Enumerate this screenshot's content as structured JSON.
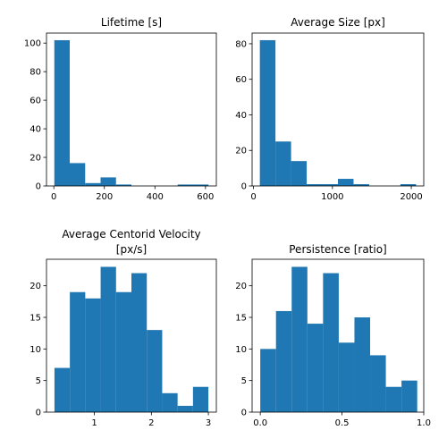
{
  "figure": {
    "background": "#ffffff",
    "bar_color": "#1f77b4"
  },
  "chart_data": [
    {
      "type": "bar",
      "title": "Lifetime [s]",
      "title_lines": [
        "Lifetime [s]"
      ],
      "xlabel": "",
      "ylabel": "",
      "bin_edges": [
        2,
        63,
        124,
        185,
        246,
        307,
        368,
        429,
        490,
        551,
        612
      ],
      "values": [
        102,
        16,
        2,
        6,
        1,
        0,
        0,
        0,
        1,
        1
      ],
      "xlim": [
        -29,
        643
      ],
      "ylim": [
        0,
        107
      ],
      "xticks": [
        0,
        200,
        400,
        600
      ],
      "xtick_labels": [
        "0",
        "200",
        "400",
        "600"
      ],
      "yticks": [
        0,
        20,
        40,
        60,
        80,
        100
      ],
      "ytick_labels": [
        "0",
        "20",
        "40",
        "60",
        "80",
        "100"
      ],
      "grid": false
    },
    {
      "type": "bar",
      "title": "Average Size [px]",
      "title_lines": [
        "Average Size [px]"
      ],
      "xlabel": "",
      "ylabel": "",
      "bin_edges": [
        80,
        278,
        476,
        674,
        872,
        1070,
        1268,
        1466,
        1664,
        1862,
        2060
      ],
      "values": [
        82,
        25,
        14,
        1,
        1,
        4,
        1,
        0,
        0,
        1
      ],
      "xlim": [
        -18,
        2158
      ],
      "ylim": [
        0,
        86
      ],
      "xticks": [
        0,
        1000,
        2000
      ],
      "xtick_labels": [
        "0",
        "1000",
        "2000"
      ],
      "yticks": [
        0,
        20,
        40,
        60,
        80
      ],
      "ytick_labels": [
        "0",
        "20",
        "40",
        "60",
        "80"
      ],
      "grid": false
    },
    {
      "type": "bar",
      "title": "Average Centorid Velocity\n[px/s]",
      "title_lines": [
        "Average Centorid Velocity",
        "[px/s]"
      ],
      "xlabel": "",
      "ylabel": "",
      "bin_edges": [
        0.3,
        0.57,
        0.84,
        1.11,
        1.38,
        1.65,
        1.92,
        2.19,
        2.46,
        2.73,
        3.0
      ],
      "values": [
        7,
        19,
        18,
        23,
        19,
        22,
        13,
        3,
        1,
        4
      ],
      "xlim": [
        0.16,
        3.14
      ],
      "ylim": [
        0,
        24.2
      ],
      "xticks": [
        1,
        2,
        3
      ],
      "xtick_labels": [
        "1",
        "2",
        "3"
      ],
      "yticks": [
        0,
        5,
        10,
        15,
        20
      ],
      "ytick_labels": [
        "0",
        "5",
        "10",
        "15",
        "20"
      ],
      "grid": false
    },
    {
      "type": "bar",
      "title": "Persistence [ratio]",
      "title_lines": [
        "Persistence [ratio]"
      ],
      "xlabel": "",
      "ylabel": "",
      "bin_edges": [
        0.0,
        0.096,
        0.192,
        0.288,
        0.384,
        0.48,
        0.576,
        0.672,
        0.768,
        0.864,
        0.96
      ],
      "values": [
        10,
        16,
        23,
        14,
        22,
        11,
        15,
        9,
        4,
        5
      ],
      "xlim": [
        -0.05,
        1.0
      ],
      "ylim": [
        0,
        24.2
      ],
      "xticks": [
        0.0,
        0.5,
        1.0
      ],
      "xtick_labels": [
        "0.0",
        "0.5",
        "1.0"
      ],
      "yticks": [
        0,
        5,
        10,
        15,
        20
      ],
      "ytick_labels": [
        "0",
        "5",
        "10",
        "15",
        "20"
      ],
      "grid": false
    }
  ]
}
